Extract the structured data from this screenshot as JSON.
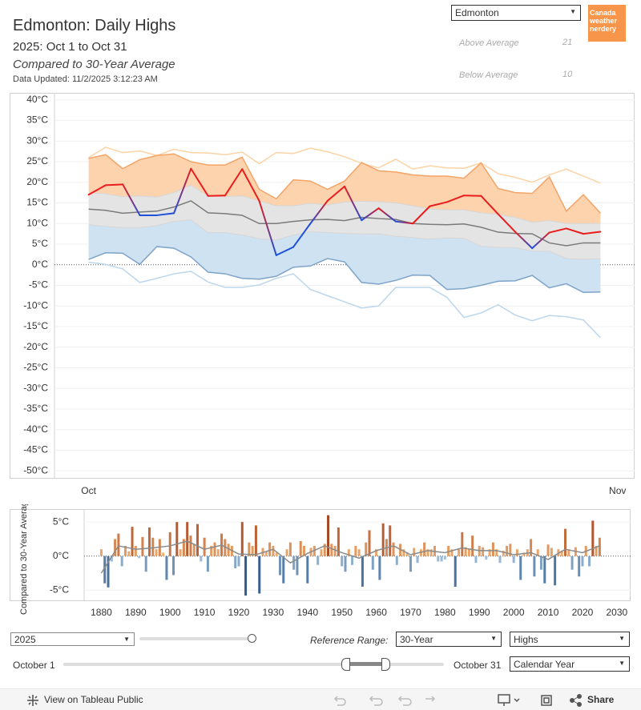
{
  "header": {
    "title": "Edmonton: Daily Highs",
    "subtitle": "2025: Oct 1 to Oct 31",
    "comparison": "Compared to 30-Year Average",
    "updated": "Data Updated: 11/2/2025 3:12:23 AM"
  },
  "city_select": "Edmonton",
  "logo": "Canada weather nerdery",
  "stats": [
    {
      "label": "Above Average",
      "value": 21
    },
    {
      "label": "Below Average",
      "value": 10
    }
  ],
  "chart_data": [
    {
      "type": "band-line",
      "x": [
        1,
        2,
        3,
        4,
        5,
        6,
        7,
        8,
        9,
        10,
        11,
        12,
        13,
        14,
        15,
        16,
        17,
        18,
        19,
        20,
        21,
        22,
        23,
        24,
        25,
        26,
        27,
        28,
        29,
        30,
        31
      ],
      "xlim": [
        -1,
        33
      ],
      "xticks": [
        {
          "value": 1,
          "label": "Oct"
        },
        {
          "value": 32,
          "label": "Nov"
        }
      ],
      "ylim": [
        -51.9,
        41.7
      ],
      "yticks": [
        {
          "value": 40,
          "label": "40°C"
        },
        {
          "value": 35,
          "label": "35°C"
        },
        {
          "value": 30,
          "label": "30°C"
        },
        {
          "value": 25,
          "label": "25°C"
        },
        {
          "value": 20,
          "label": "20°C"
        },
        {
          "value": 15,
          "label": "15°C"
        },
        {
          "value": 10,
          "label": "10°C"
        },
        {
          "value": 5,
          "label": "5°C"
        },
        {
          "value": 0,
          "label": "0°C"
        },
        {
          "value": -5,
          "label": "-5°C"
        },
        {
          "value": -10,
          "label": "-10°C"
        },
        {
          "value": -15,
          "label": "-15°C"
        },
        {
          "value": -20,
          "label": "-20°C"
        },
        {
          "value": -25,
          "label": "-25°C"
        },
        {
          "value": -30,
          "label": "-30°C"
        },
        {
          "value": -35,
          "label": "-35°C"
        },
        {
          "value": -40,
          "label": "-40°C"
        },
        {
          "value": -45,
          "label": "-45°C"
        },
        {
          "value": -50,
          "label": "-50°C"
        }
      ],
      "grid": true,
      "record_high": [
        26,
        28.5,
        27.2,
        27.6,
        26.5,
        28,
        27.2,
        27.1,
        26.7,
        27.3,
        24.5,
        27.2,
        27,
        28.3,
        27.4,
        26.2,
        24.6,
        23.5,
        25.6,
        23.2,
        24,
        23.5,
        23.4,
        24.7,
        22.1,
        21.2,
        20,
        21.8,
        23.2,
        21.5,
        19.8
      ],
      "high_top": [
        25.8,
        26.7,
        23.3,
        25.5,
        26.5,
        26.9,
        25,
        24.2,
        24.2,
        26.1,
        18.3,
        16,
        20.6,
        20.3,
        18.3,
        20.3,
        24.8,
        22.8,
        22.5,
        21.8,
        21.5,
        21.5,
        21,
        24.7,
        18.5,
        17.5,
        17.3,
        21.3,
        13,
        17,
        12.5
      ],
      "normal_top": [
        17.5,
        17.2,
        16.5,
        16.7,
        16.4,
        17.5,
        19.3,
        16.7,
        16.5,
        16.7,
        15.5,
        14.3,
        14.3,
        14.9,
        14.5,
        15.2,
        15.4,
        15.3,
        15,
        14.3,
        13.5,
        13.3,
        13.3,
        12.6,
        12.2,
        11.5,
        10.3,
        10.7,
        10,
        10,
        10
      ],
      "average": [
        13.5,
        13.2,
        12.5,
        12.8,
        13,
        14,
        15.5,
        12.6,
        12.4,
        12,
        10,
        10,
        10.5,
        10.9,
        11,
        10.7,
        11.5,
        11.2,
        11,
        10,
        9.8,
        9.7,
        9.9,
        9.1,
        7.9,
        7.6,
        7.5,
        5.3,
        4.6,
        5.3,
        5.3
      ],
      "normal_bottom": [
        9.7,
        9.3,
        9,
        9,
        9.5,
        10.5,
        10.9,
        7.8,
        7.8,
        7.2,
        6.3,
        6,
        7.2,
        8,
        7.8,
        7.6,
        7.5,
        7.5,
        6.9,
        6.6,
        6.2,
        6.5,
        6.4,
        4.5,
        4.2,
        4.2,
        3.3,
        3.3,
        1.5,
        1.3,
        1.5
      ],
      "low_bottom": [
        1.3,
        2.9,
        2.8,
        0.1,
        4.4,
        4,
        1.9,
        -1.8,
        -2.2,
        -3.3,
        -3.5,
        -2.8,
        -0.6,
        -0.3,
        1.5,
        0.7,
        -4.3,
        -4.7,
        -3.8,
        -2.5,
        -2.6,
        -6,
        -5.8,
        -5,
        -4,
        -3.9,
        -2.6,
        -5.6,
        -4.6,
        -6.7,
        -6.6
      ],
      "record_low": [
        0.6,
        0.1,
        -1,
        -4.3,
        -3.3,
        -2.2,
        -1.6,
        -4.2,
        -5.5,
        -5.5,
        -4.9,
        -3.3,
        -2.2,
        -6,
        -7.5,
        -9,
        -10.5,
        -10,
        -5.5,
        -5.5,
        -5.5,
        -7.9,
        -12.8,
        -11.7,
        -9.7,
        -12.2,
        -13.6,
        -12.3,
        -12.6,
        -13.4,
        -17.7
      ],
      "actual": [
        17,
        19.3,
        19.5,
        12,
        12,
        12.5,
        23.3,
        16.7,
        16.8,
        23.2,
        15.5,
        2.3,
        4.3,
        10,
        15.5,
        19,
        10.8,
        13.7,
        10.5,
        10,
        14.2,
        15.2,
        16.8,
        16.7,
        12.3,
        8,
        4,
        7.8,
        8.8,
        7.5,
        8
      ],
      "colors": {
        "record_high": "#fbd3a6",
        "high_fill": "#fdd3ae",
        "high_edge": "#f3a466",
        "normal_fill": "#e4e4e4",
        "normal_edge": "#d6d6d6",
        "average": "#7a7a7a",
        "low_fill": "#cfe2f2",
        "low_edge": "#7ea3c8",
        "record_low": "#bcd6ec",
        "above": "#ea1c1c",
        "below": "#1f50d8"
      }
    },
    {
      "type": "bar",
      "y_label": "Compared to 30-Year Average",
      "x": [
        1880,
        1881,
        1882,
        1883,
        1884,
        1885,
        1886,
        1887,
        1888,
        1889,
        1890,
        1891,
        1892,
        1893,
        1894,
        1895,
        1896,
        1897,
        1898,
        1899,
        1900,
        1901,
        1902,
        1903,
        1904,
        1905,
        1906,
        1907,
        1908,
        1909,
        1910,
        1911,
        1912,
        1913,
        1914,
        1915,
        1916,
        1917,
        1918,
        1919,
        1920,
        1921,
        1922,
        1923,
        1924,
        1925,
        1926,
        1927,
        1928,
        1929,
        1930,
        1931,
        1932,
        1933,
        1934,
        1935,
        1936,
        1937,
        1938,
        1939,
        1940,
        1941,
        1942,
        1943,
        1944,
        1945,
        1946,
        1947,
        1948,
        1949,
        1950,
        1951,
        1952,
        1953,
        1954,
        1955,
        1956,
        1957,
        1958,
        1959,
        1960,
        1961,
        1962,
        1963,
        1964,
        1965,
        1966,
        1967,
        1968,
        1969,
        1970,
        1971,
        1972,
        1973,
        1974,
        1975,
        1976,
        1977,
        1978,
        1979,
        1980,
        1981,
        1982,
        1983,
        1984,
        1985,
        1986,
        1987,
        1988,
        1989,
        1990,
        1991,
        1992,
        1993,
        1994,
        1995,
        1996,
        1997,
        1998,
        1999,
        2000,
        2001,
        2002,
        2003,
        2004,
        2005,
        2006,
        2007,
        2008,
        2009,
        2010,
        2011,
        2012,
        2013,
        2014,
        2015,
        2016,
        2017,
        2018,
        2019,
        2020,
        2021,
        2022,
        2023,
        2024,
        2025
      ],
      "values": [
        1.0,
        -4,
        -4.6,
        -0.8,
        2.5,
        3.3,
        -1.5,
        1.5,
        0.7,
        4.3,
        1.5,
        -0.3,
        2.8,
        -2.3,
        4.2,
        2.7,
        1.0,
        2.5,
        0.5,
        -3.5,
        3.5,
        -2.8,
        5.0,
        1.0,
        2.5,
        5.0,
        3.0,
        1.8,
        4.7,
        -0.8,
        2.7,
        -2.3,
        1.5,
        2.0,
        1.0,
        3.3,
        2.5,
        1.8,
        1.5,
        -1.8,
        -1.5,
        5.0,
        -5.8,
        2.0,
        1.5,
        4.5,
        -5.5,
        1.2,
        0.7,
        2.0,
        1.5,
        0.5,
        -2.8,
        -4.0,
        1.0,
        2.0,
        -2.0,
        -2.8,
        2.2,
        1.5,
        -4.0,
        1.2,
        1.5,
        -1.3,
        1.0,
        1.8,
        6.0,
        1.8,
        1.5,
        4.2,
        -1.5,
        -2.3,
        1.0,
        -1.3,
        1.5,
        1.0,
        -4.5,
        2.0,
        3.8,
        -2.0,
        1.0,
        -3.5,
        4.8,
        2.5,
        4.5,
        2.0,
        -1.3,
        1.8,
        1.0,
        0.5,
        -2.3,
        1.2,
        -1.0,
        1.0,
        2.0,
        1.0,
        1.0,
        1.5,
        -0.8,
        -0.8,
        -0.5,
        1.5,
        1.0,
        -4.5,
        1.0,
        3.5,
        1.3,
        1.0,
        3.0,
        -1.0,
        1.5,
        1.3,
        -0.5,
        1.0,
        2.0,
        1.0,
        -1.0,
        0.8,
        1.5,
        1.8,
        -1.0,
        1.0,
        -3.5,
        0.5,
        1.0,
        2.5,
        -3.0,
        1.0,
        -2.0,
        -4.0,
        1.7,
        1.2,
        -4.3,
        1.0,
        0.8,
        4.0,
        1.0,
        -2.0,
        1.3,
        -3.0,
        -1.5,
        1.5,
        -1.5,
        5.2,
        1.5,
        2.7
      ],
      "trend": {
        "x": [
          1880,
          1885,
          1890,
          1895,
          1900,
          1905,
          1910,
          1915,
          1920,
          1925,
          1930,
          1935,
          1940,
          1945,
          1950,
          1955,
          1960,
          1965,
          1970,
          1975,
          1980,
          1985,
          1990,
          1995,
          2000,
          2005,
          2010,
          2015,
          2020,
          2025
        ],
        "values": [
          -2.5,
          1.5,
          1.0,
          1.2,
          1.5,
          2.2,
          1.0,
          1.6,
          0.3,
          0.2,
          1.0,
          -1.0,
          0.4,
          1.5,
          0.5,
          -0.3,
          0.8,
          1.5,
          0.2,
          0.8,
          0.5,
          1.2,
          0.8,
          0.8,
          0.2,
          0.5,
          -0.5,
          1.0,
          0.5,
          1.5
        ],
        "color": "#8a8a8a"
      },
      "xlim": [
        1875,
        2034
      ],
      "xticks": [
        1880,
        1890,
        1900,
        1910,
        1920,
        1930,
        1940,
        1950,
        1960,
        1970,
        1980,
        1990,
        2000,
        2010,
        2020,
        2030
      ],
      "ylim": [
        -6.5,
        6.9
      ],
      "yticks": [
        {
          "value": 5,
          "label": "5°C"
        },
        {
          "value": 0,
          "label": "0°C"
        },
        {
          "value": -5,
          "label": "-5°C"
        }
      ],
      "positive_colors": [
        "#f7b774",
        "#9c3717"
      ],
      "negative_colors": [
        "#a9c8e3",
        "#1c4677"
      ]
    }
  ],
  "controls": {
    "year": "2025",
    "reference_label": "Reference Range:",
    "reference": "30-Year",
    "measure": "Highs",
    "start": "October 1",
    "end": "October 31",
    "period": "Calendar Year"
  },
  "footer": {
    "view": "View on Tableau Public",
    "share": "Share"
  }
}
